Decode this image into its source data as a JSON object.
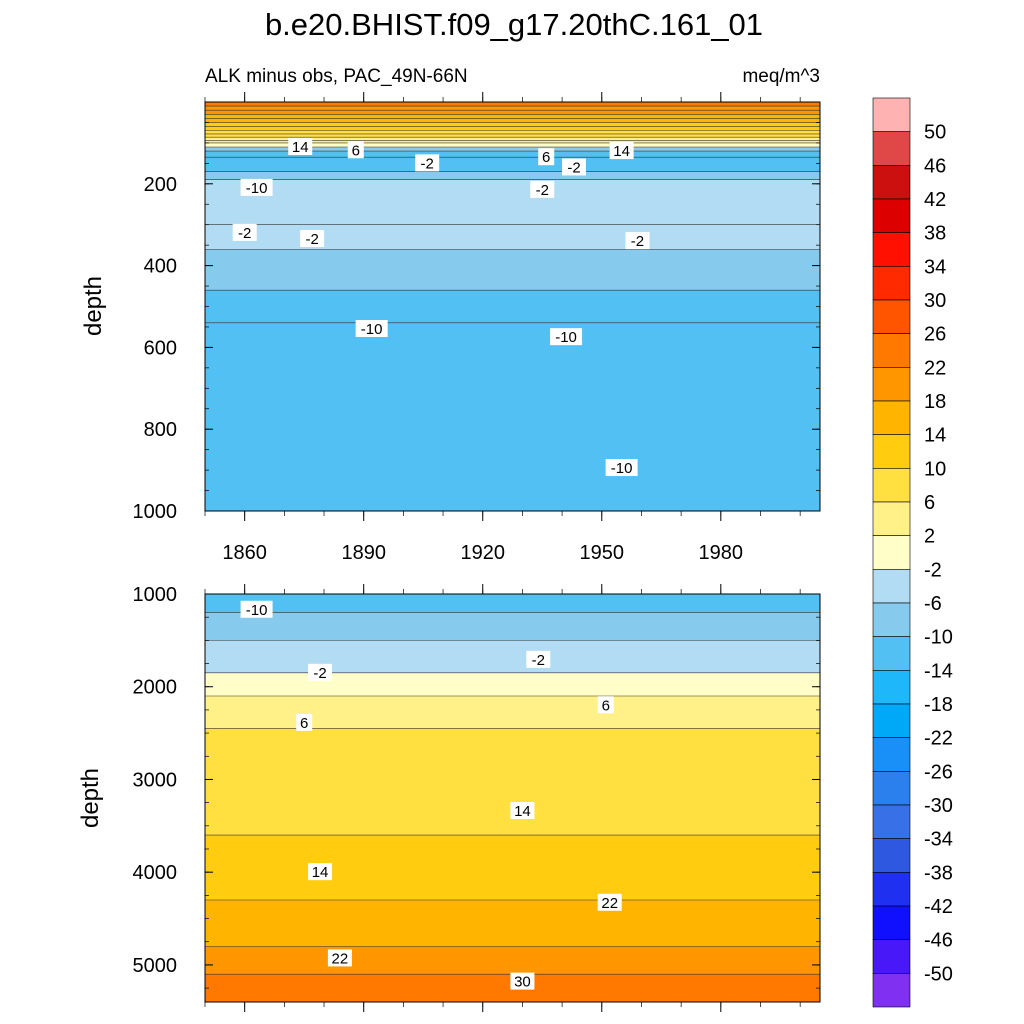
{
  "title": "b.e20.BHIST.f09_g17.20thC.161_01",
  "subtitle_left": "ALK minus obs, PAC_49N-66N",
  "subtitle_right": "meq/m^3",
  "chart_data": [
    {
      "type": "heatmap",
      "panel": "upper",
      "ylabel": "depth",
      "xlim": [
        1850,
        2005
      ],
      "ylim": [
        1000,
        0
      ],
      "x_ticks": [
        1860,
        1890,
        1920,
        1950,
        1980
      ],
      "x_tick_labels": [
        "1860",
        "1890",
        "1920",
        "1950",
        "1980"
      ],
      "y_ticks": [
        200,
        400,
        600,
        800,
        1000
      ],
      "y_tick_labels": [
        "200",
        "400",
        "600",
        "800",
        "1000"
      ],
      "bands": [
        {
          "depth": 0,
          "value": 26
        },
        {
          "depth": 10,
          "value": 22
        },
        {
          "depth": 20,
          "value": 20
        },
        {
          "depth": 30,
          "value": 18
        },
        {
          "depth": 40,
          "value": 16
        },
        {
          "depth": 50,
          "value": 14
        },
        {
          "depth": 60,
          "value": 12
        },
        {
          "depth": 70,
          "value": 10
        },
        {
          "depth": 78,
          "value": 8
        },
        {
          "depth": 86,
          "value": 6
        },
        {
          "depth": 94,
          "value": 4
        },
        {
          "depth": 100,
          "value": 0
        },
        {
          "depth": 110,
          "value": -6
        },
        {
          "depth": 120,
          "value": -10
        },
        {
          "depth": 135,
          "value": -12
        },
        {
          "depth": 170,
          "value": -8
        },
        {
          "depth": 190,
          "value": -4
        },
        {
          "depth": 300,
          "value": -5
        },
        {
          "depth": 360,
          "value": -8
        },
        {
          "depth": 460,
          "value": -10
        },
        {
          "depth": 540,
          "value": -12
        },
        {
          "depth": 1000,
          "value": -12
        }
      ],
      "contour_labels": [
        {
          "text": "14",
          "x": 1874,
          "y": 110
        },
        {
          "text": "6",
          "x": 1888,
          "y": 118
        },
        {
          "text": "-2",
          "x": 1906,
          "y": 150
        },
        {
          "text": "6",
          "x": 1936,
          "y": 135
        },
        {
          "text": "-2",
          "x": 1943,
          "y": 160
        },
        {
          "text": "14",
          "x": 1955,
          "y": 120
        },
        {
          "text": "-10",
          "x": 1863,
          "y": 210
        },
        {
          "text": "-2",
          "x": 1935,
          "y": 215
        },
        {
          "text": "-2",
          "x": 1860,
          "y": 320
        },
        {
          "text": "-2",
          "x": 1877,
          "y": 335
        },
        {
          "text": "-2",
          "x": 1959,
          "y": 340
        },
        {
          "text": "-10",
          "x": 1892,
          "y": 555
        },
        {
          "text": "-10",
          "x": 1941,
          "y": 575
        },
        {
          "text": "-10",
          "x": 1955,
          "y": 895
        }
      ]
    },
    {
      "type": "heatmap",
      "panel": "lower",
      "ylabel": "depth",
      "xlim": [
        1850,
        2005
      ],
      "ylim": [
        5400,
        1000
      ],
      "y_ticks": [
        1000,
        2000,
        3000,
        4000,
        5000
      ],
      "y_tick_labels": [
        "1000",
        "2000",
        "3000",
        "4000",
        "5000"
      ],
      "bands": [
        {
          "depth": 1000,
          "value": -12
        },
        {
          "depth": 1200,
          "value": -8
        },
        {
          "depth": 1500,
          "value": -4
        },
        {
          "depth": 1850,
          "value": 0
        },
        {
          "depth": 2100,
          "value": 4
        },
        {
          "depth": 2450,
          "value": 8
        },
        {
          "depth": 3600,
          "value": 12
        },
        {
          "depth": 4300,
          "value": 16
        },
        {
          "depth": 4800,
          "value": 20
        },
        {
          "depth": 5100,
          "value": 24
        },
        {
          "depth": 5400,
          "value": 26
        }
      ],
      "contour_labels": [
        {
          "text": "-10",
          "x": 1863,
          "y": 1170
        },
        {
          "text": "-2",
          "x": 1879,
          "y": 1850
        },
        {
          "text": "-2",
          "x": 1934,
          "y": 1710
        },
        {
          "text": "6",
          "x": 1875,
          "y": 2390
        },
        {
          "text": "6",
          "x": 1951,
          "y": 2200
        },
        {
          "text": "14",
          "x": 1930,
          "y": 3340
        },
        {
          "text": "14",
          "x": 1879,
          "y": 4000
        },
        {
          "text": "22",
          "x": 1952,
          "y": 4330
        },
        {
          "text": "22",
          "x": 1884,
          "y": 4930
        },
        {
          "text": "30",
          "x": 1930,
          "y": 5180
        }
      ]
    }
  ],
  "colorbar": {
    "levels": [
      50,
      46,
      42,
      38,
      34,
      30,
      26,
      22,
      18,
      14,
      10,
      6,
      2,
      -2,
      -6,
      -10,
      -14,
      -18,
      -22,
      -26,
      -30,
      -34,
      -38,
      -42,
      -46,
      -50
    ],
    "labels": [
      "50",
      "46",
      "42",
      "38",
      "34",
      "30",
      "26",
      "22",
      "18",
      "14",
      "10",
      "6",
      "2",
      "-2",
      "-6",
      "-10",
      "-14",
      "-18",
      "-22",
      "-26",
      "-30",
      "-34",
      "-38",
      "-42",
      "-46",
      "-50"
    ],
    "colors": [
      "#ffb2b2",
      "#e04848",
      "#cc1010",
      "#dd0000",
      "#ff1000",
      "#ff2a00",
      "#ff5400",
      "#ff7800",
      "#ff9600",
      "#ffb400",
      "#ffcc10",
      "#ffe040",
      "#fff088",
      "#fffdc8",
      "#b2dcf4",
      "#86caee",
      "#52c0f2",
      "#1eb8fa",
      "#00a8f8",
      "#1890f8",
      "#2c80ee",
      "#3870e8",
      "#2e58e0",
      "#2030f0",
      "#1010ff",
      "#4818f8",
      "#8030f0"
    ]
  }
}
